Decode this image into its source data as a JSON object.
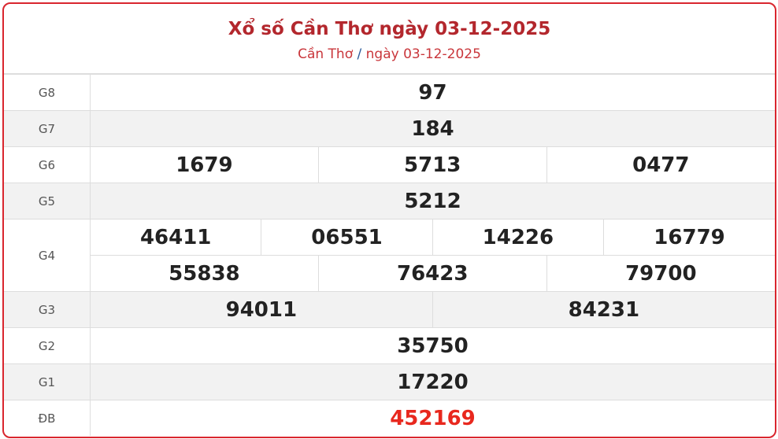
{
  "header": {
    "title": "Xổ số Cần Thơ ngày 03-12-2025",
    "breadcrumb_province": "Cần Thơ",
    "breadcrumb_sep": "/",
    "breadcrumb_date": "ngày 03-12-2025"
  },
  "prizes": {
    "g8": {
      "label": "G8",
      "numbers": [
        "97"
      ]
    },
    "g7": {
      "label": "G7",
      "numbers": [
        "184"
      ]
    },
    "g6": {
      "label": "G6",
      "numbers": [
        "1679",
        "5713",
        "0477"
      ]
    },
    "g5": {
      "label": "G5",
      "numbers": [
        "5212"
      ]
    },
    "g4": {
      "label": "G4",
      "numbers": [
        "46411",
        "06551",
        "14226",
        "16779",
        "55838",
        "76423",
        "79700"
      ]
    },
    "g3": {
      "label": "G3",
      "numbers": [
        "94011",
        "84231"
      ]
    },
    "g2": {
      "label": "G2",
      "numbers": [
        "35750"
      ]
    },
    "g1": {
      "label": "G1",
      "numbers": [
        "17220"
      ]
    },
    "db": {
      "label": "ĐB",
      "numbers": [
        "452169"
      ]
    }
  },
  "colors": {
    "border": "#d9262e",
    "title": "#b3272d",
    "special": "#e8281e",
    "alt_row": "#f2f2f2"
  }
}
